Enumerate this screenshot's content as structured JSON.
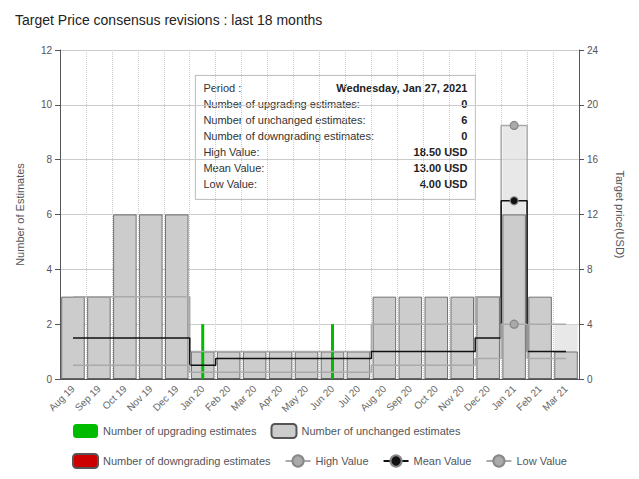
{
  "chart_data": {
    "type": "bar",
    "title": "Target Price consensus revisions : last 18 months",
    "ylabel": "Number of Estimates",
    "y2label": "Target price(USD)",
    "categories": [
      "Aug 19",
      "Sep 19",
      "Oct 19",
      "Nov 19",
      "Dec 19",
      "Jan 20",
      "Feb 20",
      "Mar 20",
      "Apr 20",
      "May 20",
      "Jun 20",
      "Jul 20",
      "Aug 20",
      "Sep 20",
      "Oct 20",
      "Nov 20",
      "Dec 20",
      "Jan 21",
      "Feb 21",
      "Mar 21"
    ],
    "series": [
      {
        "name": "Number of upgrading estimates",
        "type": "bar",
        "color": "#00bb00",
        "values": [
          null,
          null,
          null,
          null,
          null,
          2,
          null,
          null,
          null,
          null,
          2,
          null,
          null,
          null,
          null,
          null,
          null,
          null,
          null,
          null
        ]
      },
      {
        "name": "Number of unchanged estimates",
        "type": "bar",
        "color": "#cccccc",
        "values": [
          3,
          3,
          6,
          6,
          6,
          1,
          1,
          1,
          1,
          1,
          1,
          1,
          3,
          3,
          3,
          3,
          3,
          6,
          3,
          1
        ]
      },
      {
        "name": "Number of downgrading estimates",
        "type": "bar",
        "color": "#cc0000",
        "values": [
          0,
          0,
          0,
          0,
          0,
          0,
          0,
          0,
          0,
          0,
          0,
          0,
          0,
          0,
          0,
          0,
          0,
          0,
          0,
          0
        ]
      },
      {
        "name": "High Value",
        "type": "line",
        "axis": "y2",
        "color": "#aaaaaa",
        "marker": "circle",
        "line_style": "step",
        "values": [
          6,
          6,
          6,
          6,
          6,
          2,
          2,
          2,
          2,
          2,
          2,
          2,
          4,
          4,
          4,
          4,
          6,
          18.5,
          4,
          4
        ]
      },
      {
        "name": "Mean Value",
        "type": "line",
        "axis": "y2",
        "color": "#111111",
        "marker": "circle",
        "line_style": "step",
        "values": [
          3,
          3,
          3,
          3,
          3,
          1,
          1.5,
          1.5,
          1.5,
          1.5,
          1.5,
          1.5,
          2,
          2,
          2,
          2,
          3,
          13,
          2,
          2
        ]
      },
      {
        "name": "Low Value",
        "type": "line",
        "axis": "y2",
        "color": "#aaaaaa",
        "marker": "circle",
        "line_style": "step",
        "values": [
          1,
          1,
          1,
          1,
          1,
          0.5,
          0.5,
          0.5,
          0.5,
          0.5,
          0.5,
          0.5,
          1,
          1,
          1,
          1,
          1.5,
          4,
          1.5,
          1.5
        ]
      }
    ],
    "ylim": [
      0,
      12
    ],
    "yticks": [
      0,
      2,
      4,
      6,
      8,
      10,
      12
    ],
    "y2lim": [
      0,
      24
    ],
    "y2ticks": [
      0,
      4,
      8,
      12,
      16,
      20,
      24
    ],
    "grid": true,
    "legend": "bottom",
    "annotations": [
      {
        "x": "Jan 21",
        "lines": [
          {
            "label": "Period : ",
            "value": "Wednesday, Jan 27, 2021"
          },
          {
            "label": "Number of upgrading estimates:",
            "value": "0"
          },
          {
            "label": "Number of unchanged estimates:",
            "value": "6"
          },
          {
            "label": "Number of downgrading estimates:",
            "value": "0"
          },
          {
            "label": "High Value:",
            "value": "18.50 USD"
          },
          {
            "label": "Mean Value:",
            "value": "13.00 USD"
          },
          {
            "label": "Low Value:",
            "value": "4.00 USD"
          }
        ]
      }
    ]
  }
}
